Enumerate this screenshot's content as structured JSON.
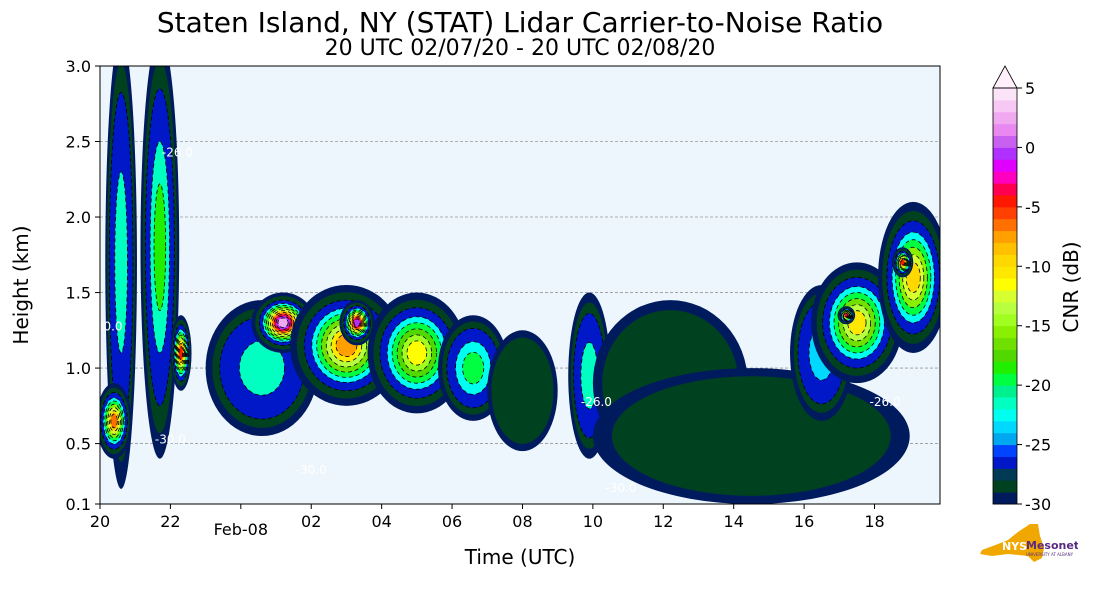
{
  "chart_data": {
    "type": "heatmap",
    "title": "Staten Island, NY (STAT) Lidar Carrier-to-Noise Ratio",
    "subtitle": "20 UTC 02/07/20 - 20 UTC 02/08/20",
    "xlabel": "Time (UTC)",
    "ylabel": "Height (km)",
    "xlim_hours_since_start": [
      0,
      23.86
    ],
    "ylim": [
      0.1,
      3.0
    ],
    "x_ticks": [
      {
        "hours": 0,
        "label": "20"
      },
      {
        "hours": 2,
        "label": "22"
      },
      {
        "hours": 6,
        "label": "02"
      },
      {
        "hours": 8,
        "label": "04"
      },
      {
        "hours": 10,
        "label": "06"
      },
      {
        "hours": 12,
        "label": "08"
      },
      {
        "hours": 14,
        "label": "10"
      },
      {
        "hours": 16,
        "label": "12"
      },
      {
        "hours": 18,
        "label": "14"
      },
      {
        "hours": 20,
        "label": "16"
      },
      {
        "hours": 22,
        "label": "18"
      }
    ],
    "date_tick": {
      "hours": 4,
      "label": "Feb-08"
    },
    "y_ticks": [
      {
        "value": 0.1,
        "label": "0.1"
      },
      {
        "value": 0.5,
        "label": "0.5"
      },
      {
        "value": 1.0,
        "label": "1.0"
      },
      {
        "value": 1.5,
        "label": "1.5"
      },
      {
        "value": 2.0,
        "label": "2.0"
      },
      {
        "value": 2.5,
        "label": "2.5"
      },
      {
        "value": 3.0,
        "label": "3.0"
      }
    ],
    "grid": "horizontal dashed",
    "colorbar": {
      "label": "CNR (dB)",
      "range": [
        -30,
        5
      ],
      "ticks": [
        {
          "value": 5,
          "label": "5"
        },
        {
          "value": 0,
          "label": "0"
        },
        {
          "value": -5,
          "label": "-5"
        },
        {
          "value": -10,
          "label": "-10"
        },
        {
          "value": -15,
          "label": "-15"
        },
        {
          "value": -20,
          "label": "-20"
        },
        {
          "value": -25,
          "label": "-25"
        },
        {
          "value": -30,
          "label": "-30"
        }
      ],
      "colors_low_to_high": [
        "#001a5e",
        "#00421f",
        "#003a55",
        "#0018c8",
        "#0044ff",
        "#00a8f0",
        "#00d8ff",
        "#00fff0",
        "#00ffc0",
        "#00f090",
        "#00ff40",
        "#20f000",
        "#50d800",
        "#70e000",
        "#88f000",
        "#a0ff20",
        "#b8ff40",
        "#d8ff30",
        "#ffff00",
        "#ffe800",
        "#ffd800",
        "#ffc000",
        "#ffa000",
        "#ff7000",
        "#ff4000",
        "#ff1800",
        "#ff0050",
        "#ff00c0",
        "#e000ff",
        "#b030ff",
        "#c860f0",
        "#e888f0",
        "#f0a8f0",
        "#f8c8f4",
        "#fce4f8",
        "#fff0fc"
      ]
    },
    "regions": [
      {
        "t": 0.6,
        "h": 1.7,
        "dt": 0.45,
        "dh": 1.5,
        "cnr": -22
      },
      {
        "t": 1.7,
        "h": 1.8,
        "dt": 0.55,
        "dh": 1.4,
        "cnr": -19
      },
      {
        "t": 2.3,
        "h": 1.1,
        "dt": 0.3,
        "dh": 0.25,
        "cnr": -5
      },
      {
        "t": 0.4,
        "h": 0.65,
        "dt": 0.5,
        "dh": 0.25,
        "cnr": -7
      },
      {
        "t": 4.6,
        "h": 1.0,
        "dt": 1.6,
        "dh": 0.45,
        "cnr": -22
      },
      {
        "t": 5.2,
        "h": 1.3,
        "dt": 0.9,
        "dh": 0.2,
        "cnr": 2
      },
      {
        "t": 7.0,
        "h": 1.15,
        "dt": 1.6,
        "dh": 0.4,
        "cnr": -8
      },
      {
        "t": 7.3,
        "h": 1.3,
        "dt": 0.5,
        "dh": 0.15,
        "cnr": -1
      },
      {
        "t": 9.0,
        "h": 1.1,
        "dt": 1.4,
        "dh": 0.4,
        "cnr": -12
      },
      {
        "t": 10.6,
        "h": 1.0,
        "dt": 1.0,
        "dh": 0.35,
        "cnr": -20
      },
      {
        "t": 12.0,
        "h": 0.85,
        "dt": 1.0,
        "dh": 0.4,
        "cnr": -28
      },
      {
        "t": 13.9,
        "h": 0.95,
        "dt": 0.6,
        "dh": 0.55,
        "cnr": -22
      },
      {
        "t": 16.2,
        "h": 0.9,
        "dt": 2.2,
        "dh": 0.55,
        "cnr": -29
      },
      {
        "t": 18.5,
        "h": 0.55,
        "dt": 4.5,
        "dh": 0.45,
        "cnr": -29
      },
      {
        "t": 20.5,
        "h": 1.1,
        "dt": 0.9,
        "dh": 0.45,
        "cnr": -24
      },
      {
        "t": 21.5,
        "h": 1.3,
        "dt": 1.3,
        "dh": 0.4,
        "cnr": -11
      },
      {
        "t": 21.2,
        "h": 1.35,
        "dt": 0.25,
        "dh": 0.06,
        "cnr": -4
      },
      {
        "t": 23.1,
        "h": 1.6,
        "dt": 1.0,
        "dh": 0.5,
        "cnr": -10
      },
      {
        "t": 22.8,
        "h": 1.7,
        "dt": 0.3,
        "dh": 0.1,
        "cnr": -5
      }
    ],
    "contour_labels": [
      {
        "t": 14.8,
        "h": 0.18,
        "text": "-30.0"
      },
      {
        "t": 0.2,
        "h": 1.25,
        "text": "-30.0"
      },
      {
        "t": 2.2,
        "h": 2.4,
        "text": "-26.0"
      },
      {
        "t": 22.3,
        "h": 0.75,
        "text": "-26.0"
      },
      {
        "t": 14.1,
        "h": 0.75,
        "text": "-26.0"
      },
      {
        "t": 2.0,
        "h": 0.5,
        "text": "-30.0"
      },
      {
        "t": 6.0,
        "h": 0.3,
        "text": "-30.0"
      }
    ]
  },
  "logo": {
    "text": "NYS Mesonet",
    "subtext": "UNIVERSITY AT ALBANY"
  }
}
